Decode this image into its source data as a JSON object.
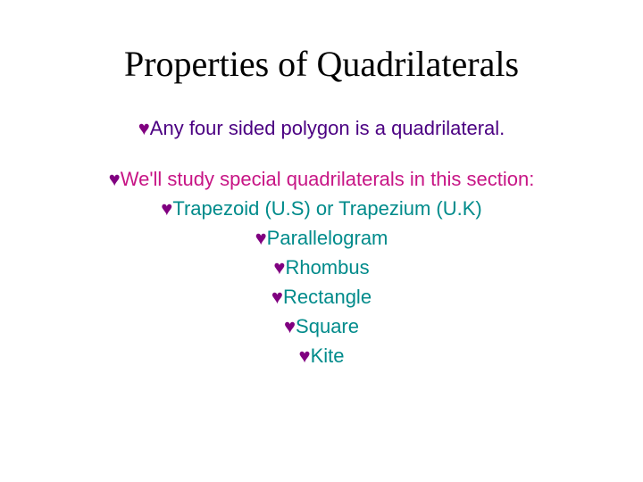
{
  "slide": {
    "title": "Properties of Quadrilaterals",
    "bullet_char": "♥",
    "colors": {
      "title": "#000000",
      "indigo": "#4b0082",
      "magenta": "#c71585",
      "teal": "#008b8b",
      "purple_bullet": "#800080",
      "background": "#ffffff"
    },
    "title_fontsize": 40,
    "body_fontsize": 22,
    "lines": [
      {
        "text": "Any four sided polygon is a quadrilateral.",
        "text_color": "indigo",
        "bullet_color": "purple"
      },
      {
        "spacer": true
      },
      {
        "text": "We'll study special quadrilaterals in this section:",
        "text_color": "magenta",
        "bullet_color": "purple"
      },
      {
        "text": "Trapezoid (U.S) or Trapezium (U.K)",
        "text_color": "teal",
        "bullet_color": "purple"
      },
      {
        "text": "Parallelogram",
        "text_color": "teal",
        "bullet_color": "purple"
      },
      {
        "text": "Rhombus",
        "text_color": "teal",
        "bullet_color": "purple"
      },
      {
        "text": "Rectangle",
        "text_color": "teal",
        "bullet_color": "purple"
      },
      {
        "text": "Square",
        "text_color": "teal",
        "bullet_color": "purple"
      },
      {
        "text": "Kite",
        "text_color": "teal",
        "bullet_color": "purple"
      }
    ]
  }
}
